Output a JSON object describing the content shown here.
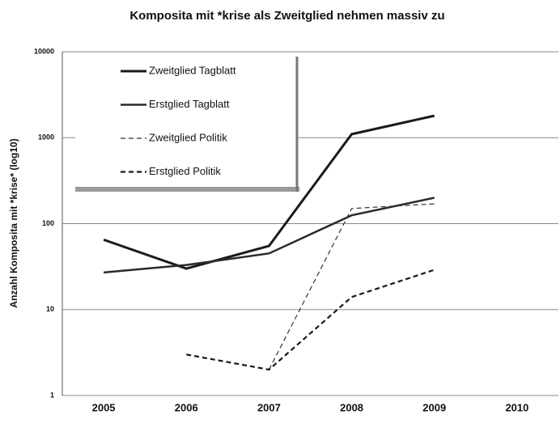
{
  "chart_data": {
    "type": "line",
    "title": "Komposita mit *krise als Zweitglied nehmen massiv zu",
    "y_label": "Anzahl Komposita mit *krise* (log10)",
    "categories": [
      "2005",
      "2006",
      "2007",
      "2008",
      "2009",
      "2010"
    ],
    "log_scale_y": true,
    "ylim": [
      1,
      10000
    ],
    "yticks": [
      1,
      10,
      100,
      1000,
      10000
    ],
    "grid": true,
    "legend": "upper left",
    "series": [
      {
        "name": "Zweitglied Tagblatt",
        "color": "#1a1a1a",
        "linestyle": "solid",
        "linewidth": 3,
        "values": [
          65,
          30,
          55,
          1100,
          1800,
          null
        ]
      },
      {
        "name": "Erstglied Tagblatt",
        "color": "#2a2a2a",
        "linestyle": "solid",
        "linewidth": 2.5,
        "values": [
          27,
          33,
          45,
          125,
          200,
          null
        ]
      },
      {
        "name": "Zweitglied Politik",
        "color": "#333333",
        "linestyle": "dashed",
        "linewidth": 1.2,
        "values": [
          null,
          null,
          2,
          150,
          170,
          null
        ]
      },
      {
        "name": "Erstglied Politik",
        "color": "#1a1a1a",
        "linestyle": "dashed",
        "linewidth": 2.2,
        "values": [
          null,
          3,
          2,
          14,
          29,
          null
        ]
      }
    ]
  }
}
